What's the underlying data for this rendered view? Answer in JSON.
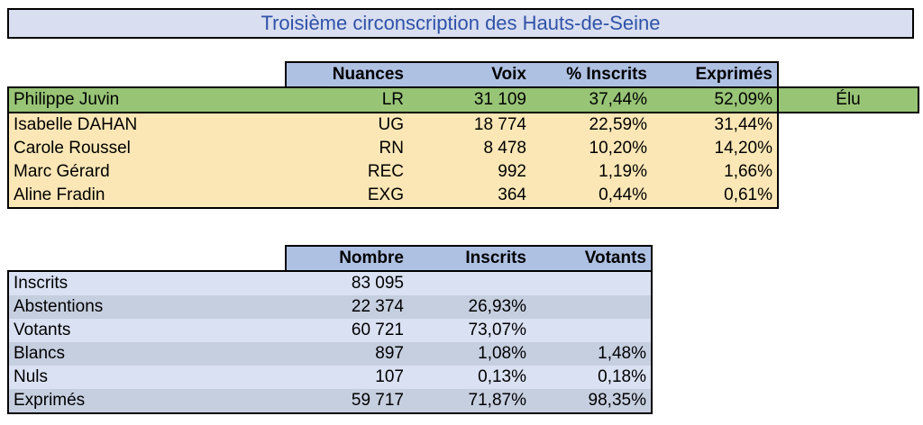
{
  "title": "Troisième circonscription des Hauts-de-Seine",
  "results": {
    "headers": [
      "Nuances",
      "Voix",
      "% Inscrits",
      "Exprimés"
    ],
    "rows": [
      {
        "name": "Philippe Juvin",
        "nuance": "LR",
        "voix": "31 109",
        "inscrits": "37,44%",
        "exprimes": "52,09%",
        "status": "Élu"
      },
      {
        "name": "Isabelle DAHAN",
        "nuance": "UG",
        "voix": "18 774",
        "inscrits": "22,59%",
        "exprimes": "31,44%",
        "status": ""
      },
      {
        "name": "Carole Roussel",
        "nuance": "RN",
        "voix": "8 478",
        "inscrits": "10,20%",
        "exprimes": "14,20%",
        "status": ""
      },
      {
        "name": "Marc Gérard",
        "nuance": "REC",
        "voix": "992",
        "inscrits": "1,19%",
        "exprimes": "1,66%",
        "status": ""
      },
      {
        "name": "Aline Fradin",
        "nuance": "EXG",
        "voix": "364",
        "inscrits": "0,44%",
        "exprimes": "0,61%",
        "status": ""
      }
    ]
  },
  "stats": {
    "headers": [
      "Nombre",
      "Inscrits",
      "Votants"
    ],
    "rows": [
      {
        "label": "Inscrits",
        "nombre": "83 095",
        "inscrits": "",
        "votants": ""
      },
      {
        "label": "Abstentions",
        "nombre": "22 374",
        "inscrits": "26,93%",
        "votants": ""
      },
      {
        "label": "Votants",
        "nombre": "60 721",
        "inscrits": "73,07%",
        "votants": ""
      },
      {
        "label": "Blancs",
        "nombre": "897",
        "inscrits": "1,08%",
        "votants": "1,48%"
      },
      {
        "label": "Nuls",
        "nombre": "107",
        "inscrits": "0,13%",
        "votants": "0,18%"
      },
      {
        "label": "Exprimés",
        "nombre": "59 717",
        "inscrits": "71,87%",
        "votants": "98,35%"
      }
    ]
  },
  "colors": {
    "title_bg": "#d9dff0",
    "title_text": "#2f52a8",
    "header_bg": "#afc1e3",
    "winner_bg": "#98c476",
    "candidate_bg": "#fbe7b6",
    "stats_row_a": "#d9e1f2",
    "stats_row_b": "#c6cfe0"
  }
}
